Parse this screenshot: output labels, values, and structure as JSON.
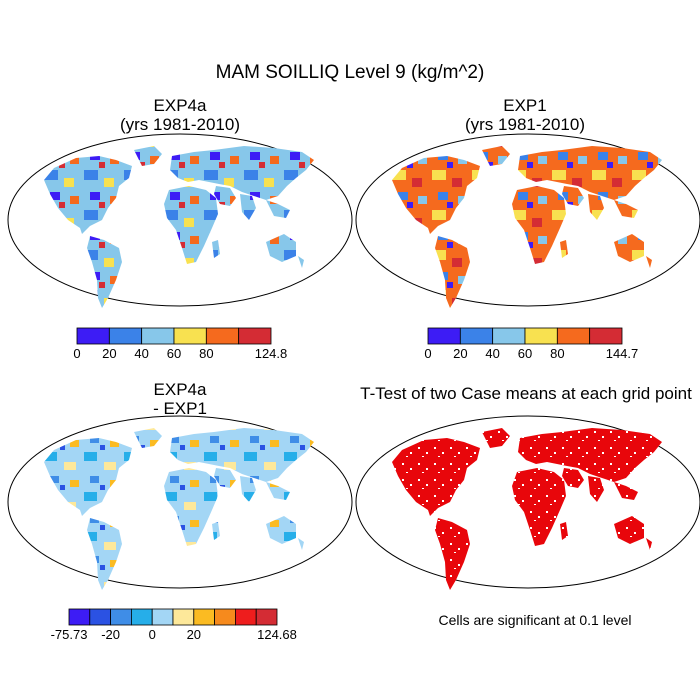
{
  "figure_title": "MAM SOILLIQ Level 9 (kg/m^2)",
  "panels": [
    {
      "id": "exp4a",
      "title_line1": "EXP4a",
      "title_line2": "(yrs 1981-2010)",
      "colorbar": {
        "colors": [
          "#3d1cf5",
          "#3b82e8",
          "#87c7ea",
          "#f8e150",
          "#f56a1e",
          "#d42c34"
        ],
        "labels": [
          "0",
          "20",
          "40",
          "60",
          "80",
          "124.8"
        ]
      }
    },
    {
      "id": "exp1",
      "title_line1": "EXP1",
      "title_line2": "(yrs 1981-2010)",
      "colorbar": {
        "colors": [
          "#3d1cf5",
          "#3b82e8",
          "#87c7ea",
          "#f8e150",
          "#f56a1e",
          "#d42c34"
        ],
        "labels": [
          "0",
          "20",
          "40",
          "60",
          "80",
          "144.7"
        ]
      }
    },
    {
      "id": "diff",
      "title_line1": "EXP4a",
      "title_line2": "- EXP1",
      "colorbar": {
        "colors": [
          "#3d1cf5",
          "#2b52e3",
          "#3f8de7",
          "#26aee9",
          "#a3d6f5",
          "#fde89a",
          "#fbbb22",
          "#f68a1d",
          "#ee1d1d",
          "#d42c34"
        ],
        "labels": [
          "-75.73",
          "-20",
          "0",
          "20",
          "124.68"
        ]
      }
    },
    {
      "id": "ttest",
      "title_line1": "T-Test of two Case means at each grid point",
      "note": "Cells are significant at 0.1 level",
      "fill_color": "#e8060b"
    }
  ]
}
